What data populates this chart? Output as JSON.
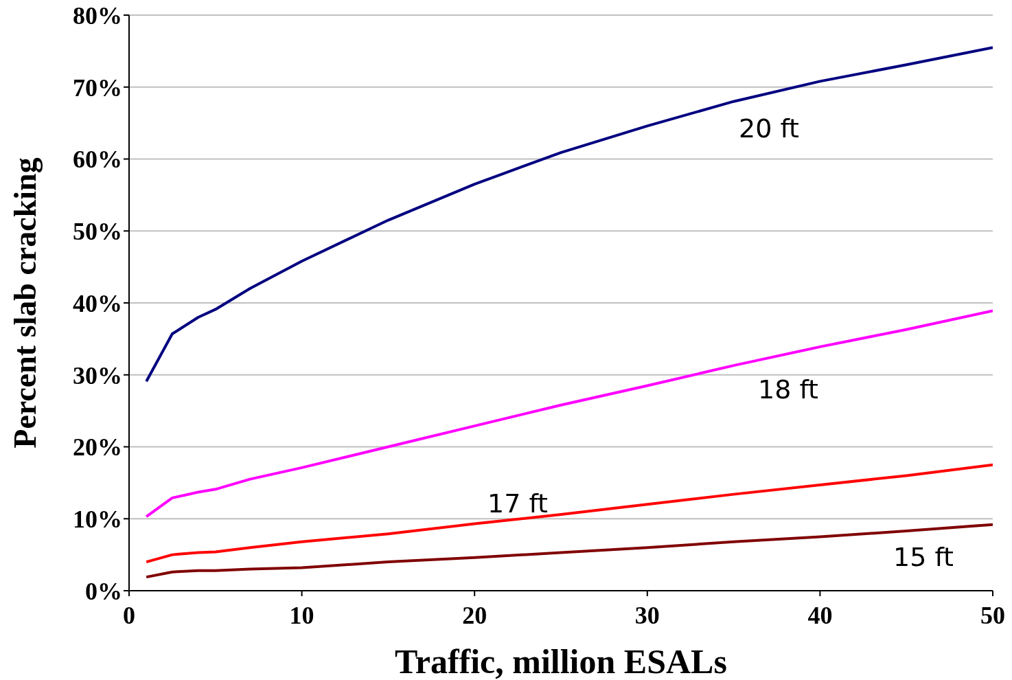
{
  "chart_data": {
    "type": "line",
    "xlabel": "Traffic, million ESALs",
    "ylabel": "Percent slab cracking",
    "x": [
      1,
      2.5,
      4,
      5,
      7,
      10,
      15,
      20,
      25,
      30,
      35,
      40,
      45,
      50
    ],
    "series": [
      {
        "color": "#000080",
        "values": [
          29.1,
          35.7,
          38,
          39.1,
          42,
          45.8,
          51.5,
          56.5,
          60.9,
          64.6,
          68,
          70.8,
          73.1,
          75.5
        ]
      },
      {
        "color": "#ff00ff",
        "values": [
          10.3,
          12.9,
          13.7,
          14.1,
          15.5,
          17.1,
          20,
          22.9,
          25.8,
          28.5,
          31.3,
          33.9,
          36.3,
          38.9
        ]
      },
      {
        "color": "#ff0000",
        "values": [
          4,
          5,
          5.3,
          5.4,
          6,
          6.8,
          7.9,
          9.3,
          10.6,
          12,
          13.4,
          14.7,
          16,
          17.5
        ]
      },
      {
        "color": "#800000",
        "values": [
          1.9,
          2.6,
          2.8,
          2.8,
          3,
          3.2,
          4,
          4.6,
          5.3,
          6,
          6.8,
          7.5,
          8.3,
          9.2
        ]
      }
    ],
    "annotations": [
      "20 ft",
      "18 ft",
      "17 ft",
      "15 ft"
    ],
    "xlim": [
      0,
      50
    ],
    "xticks": [
      0,
      10,
      20,
      30,
      40,
      50
    ],
    "ylim": [
      0,
      80
    ],
    "yticks": [
      {
        "value": 0,
        "label": "0%"
      },
      {
        "value": 10,
        "label": "10%"
      },
      {
        "value": 20,
        "label": "20%"
      },
      {
        "value": 30,
        "label": "30%"
      },
      {
        "value": 40,
        "label": "40%"
      },
      {
        "value": 50,
        "label": "50%"
      },
      {
        "value": 60,
        "label": "60%"
      },
      {
        "value": 70,
        "label": "70%"
      },
      {
        "value": 80,
        "label": "80%"
      }
    ],
    "grid": "y",
    "legend": false,
    "line_style": "solid",
    "marker": "none"
  }
}
